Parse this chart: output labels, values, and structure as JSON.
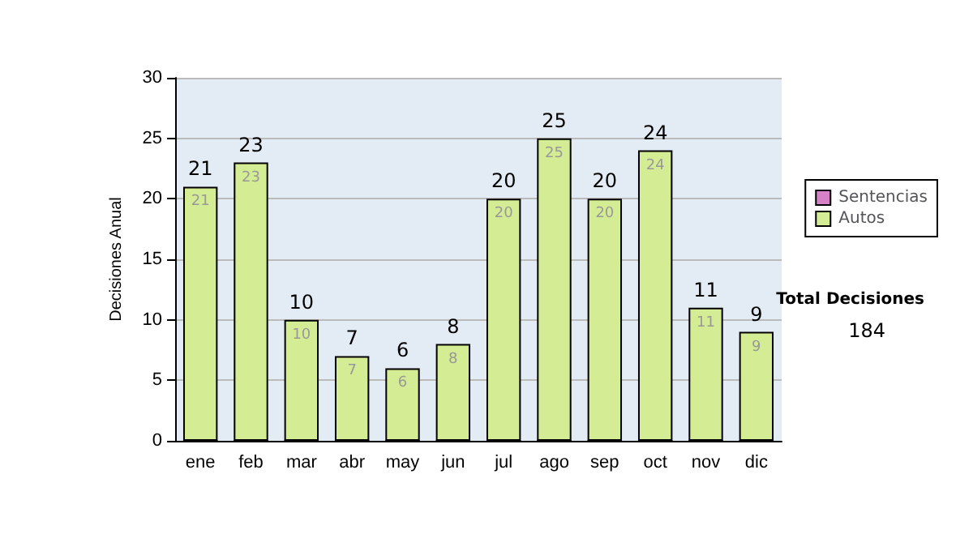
{
  "chart_data": {
    "type": "bar",
    "stacked": true,
    "ylabel": "Decisiones Anual",
    "categories": [
      "ene",
      "feb",
      "mar",
      "abr",
      "may",
      "jun",
      "jul",
      "ago",
      "sep",
      "oct",
      "nov",
      "dic"
    ],
    "series": [
      {
        "name": "Sentencias",
        "color": "#d680c8",
        "values": [
          0,
          0,
          0,
          0,
          0,
          0,
          0,
          0,
          0,
          0,
          0,
          0
        ]
      },
      {
        "name": "Autos",
        "color": "#d4ec94",
        "values": [
          21,
          23,
          10,
          7,
          6,
          8,
          20,
          25,
          20,
          24,
          11,
          9
        ],
        "value_labels": [
          "21",
          "23",
          "10",
          "7",
          "6",
          "8",
          "20",
          "25",
          "20",
          "24",
          "11",
          "9"
        ]
      }
    ],
    "totals": [
      "21",
      "23",
      "10",
      "7",
      "6",
      "8",
      "20",
      "25",
      "20",
      "24",
      "11",
      "9"
    ],
    "ylim": [
      0,
      30
    ],
    "yticks": [
      0,
      5,
      10,
      15,
      20,
      25,
      30
    ],
    "grid": "y",
    "legend": "right",
    "annotations": [
      "Total Decisiones",
      "184"
    ]
  }
}
